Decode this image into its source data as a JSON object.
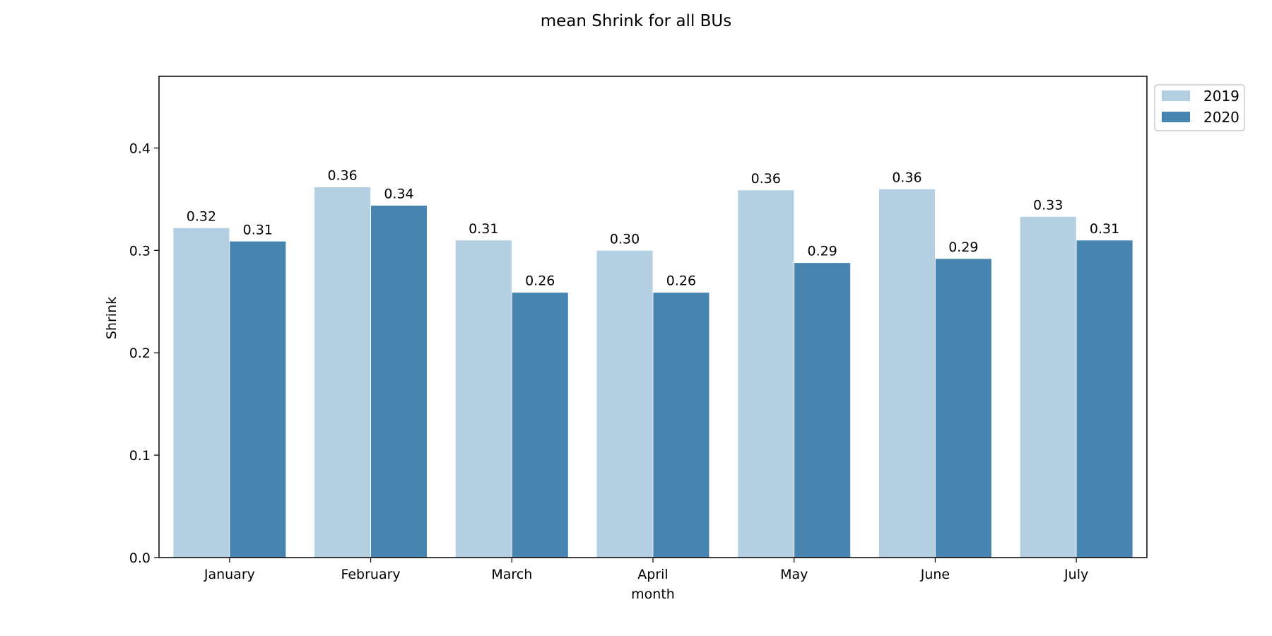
{
  "chart_data": {
    "type": "bar",
    "title": "mean Shrink for all BUs",
    "xlabel": "month",
    "ylabel": "Shrink",
    "categories": [
      "January",
      "February",
      "March",
      "April",
      "May",
      "June",
      "July"
    ],
    "series": [
      {
        "name": "2019",
        "color": "#b3cfe1",
        "values": [
          0.322,
          0.362,
          0.31,
          0.3,
          0.359,
          0.36,
          0.333
        ],
        "labels": [
          "0.32",
          "0.36",
          "0.31",
          "0.30",
          "0.36",
          "0.36",
          "0.33"
        ]
      },
      {
        "name": "2020",
        "color": "#4884b0",
        "values": [
          0.309,
          0.344,
          0.259,
          0.259,
          0.288,
          0.292,
          0.31
        ],
        "labels": [
          "0.31",
          "0.34",
          "0.26",
          "0.26",
          "0.29",
          "0.29",
          "0.31"
        ]
      }
    ],
    "ylim": [
      0,
      0.47
    ],
    "yticks": [
      "0.0",
      "0.1",
      "0.2",
      "0.3",
      "0.4"
    ],
    "grid": false,
    "legend_position": "outside top-right"
  }
}
